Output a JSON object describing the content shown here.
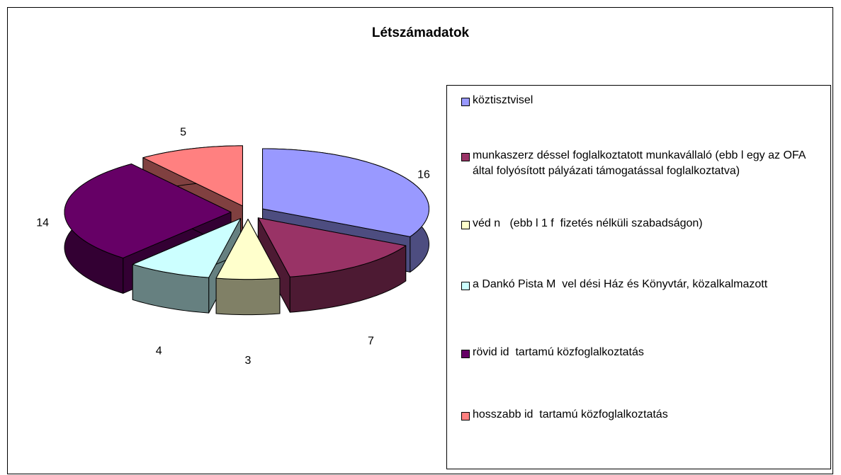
{
  "chart_data": {
    "type": "pie3d",
    "title": "Létszámadatok",
    "categories": [
      "köztisztvisel",
      "munkaszerz déssel foglalkoztatott munkavállaló (ebb l egy az OFA által folyósított pályázati támogatással foglalkoztatva)",
      "véd n   (ebb l 1 f  fizetés nélküli szabadságon)",
      "a Dankó Pista M  vel dési Ház és Könyvtár, közalkalmazott",
      "rövid id  tartamú közfoglalkoztatás",
      "hosszabb id  tartamú közfoglalkoztatás"
    ],
    "values": [
      16,
      7,
      3,
      4,
      14,
      5
    ],
    "colors": [
      "#9999ff",
      "#993366",
      "#ffffcc",
      "#ccffff",
      "#660066",
      "#ff8080"
    ],
    "legend": "right"
  }
}
